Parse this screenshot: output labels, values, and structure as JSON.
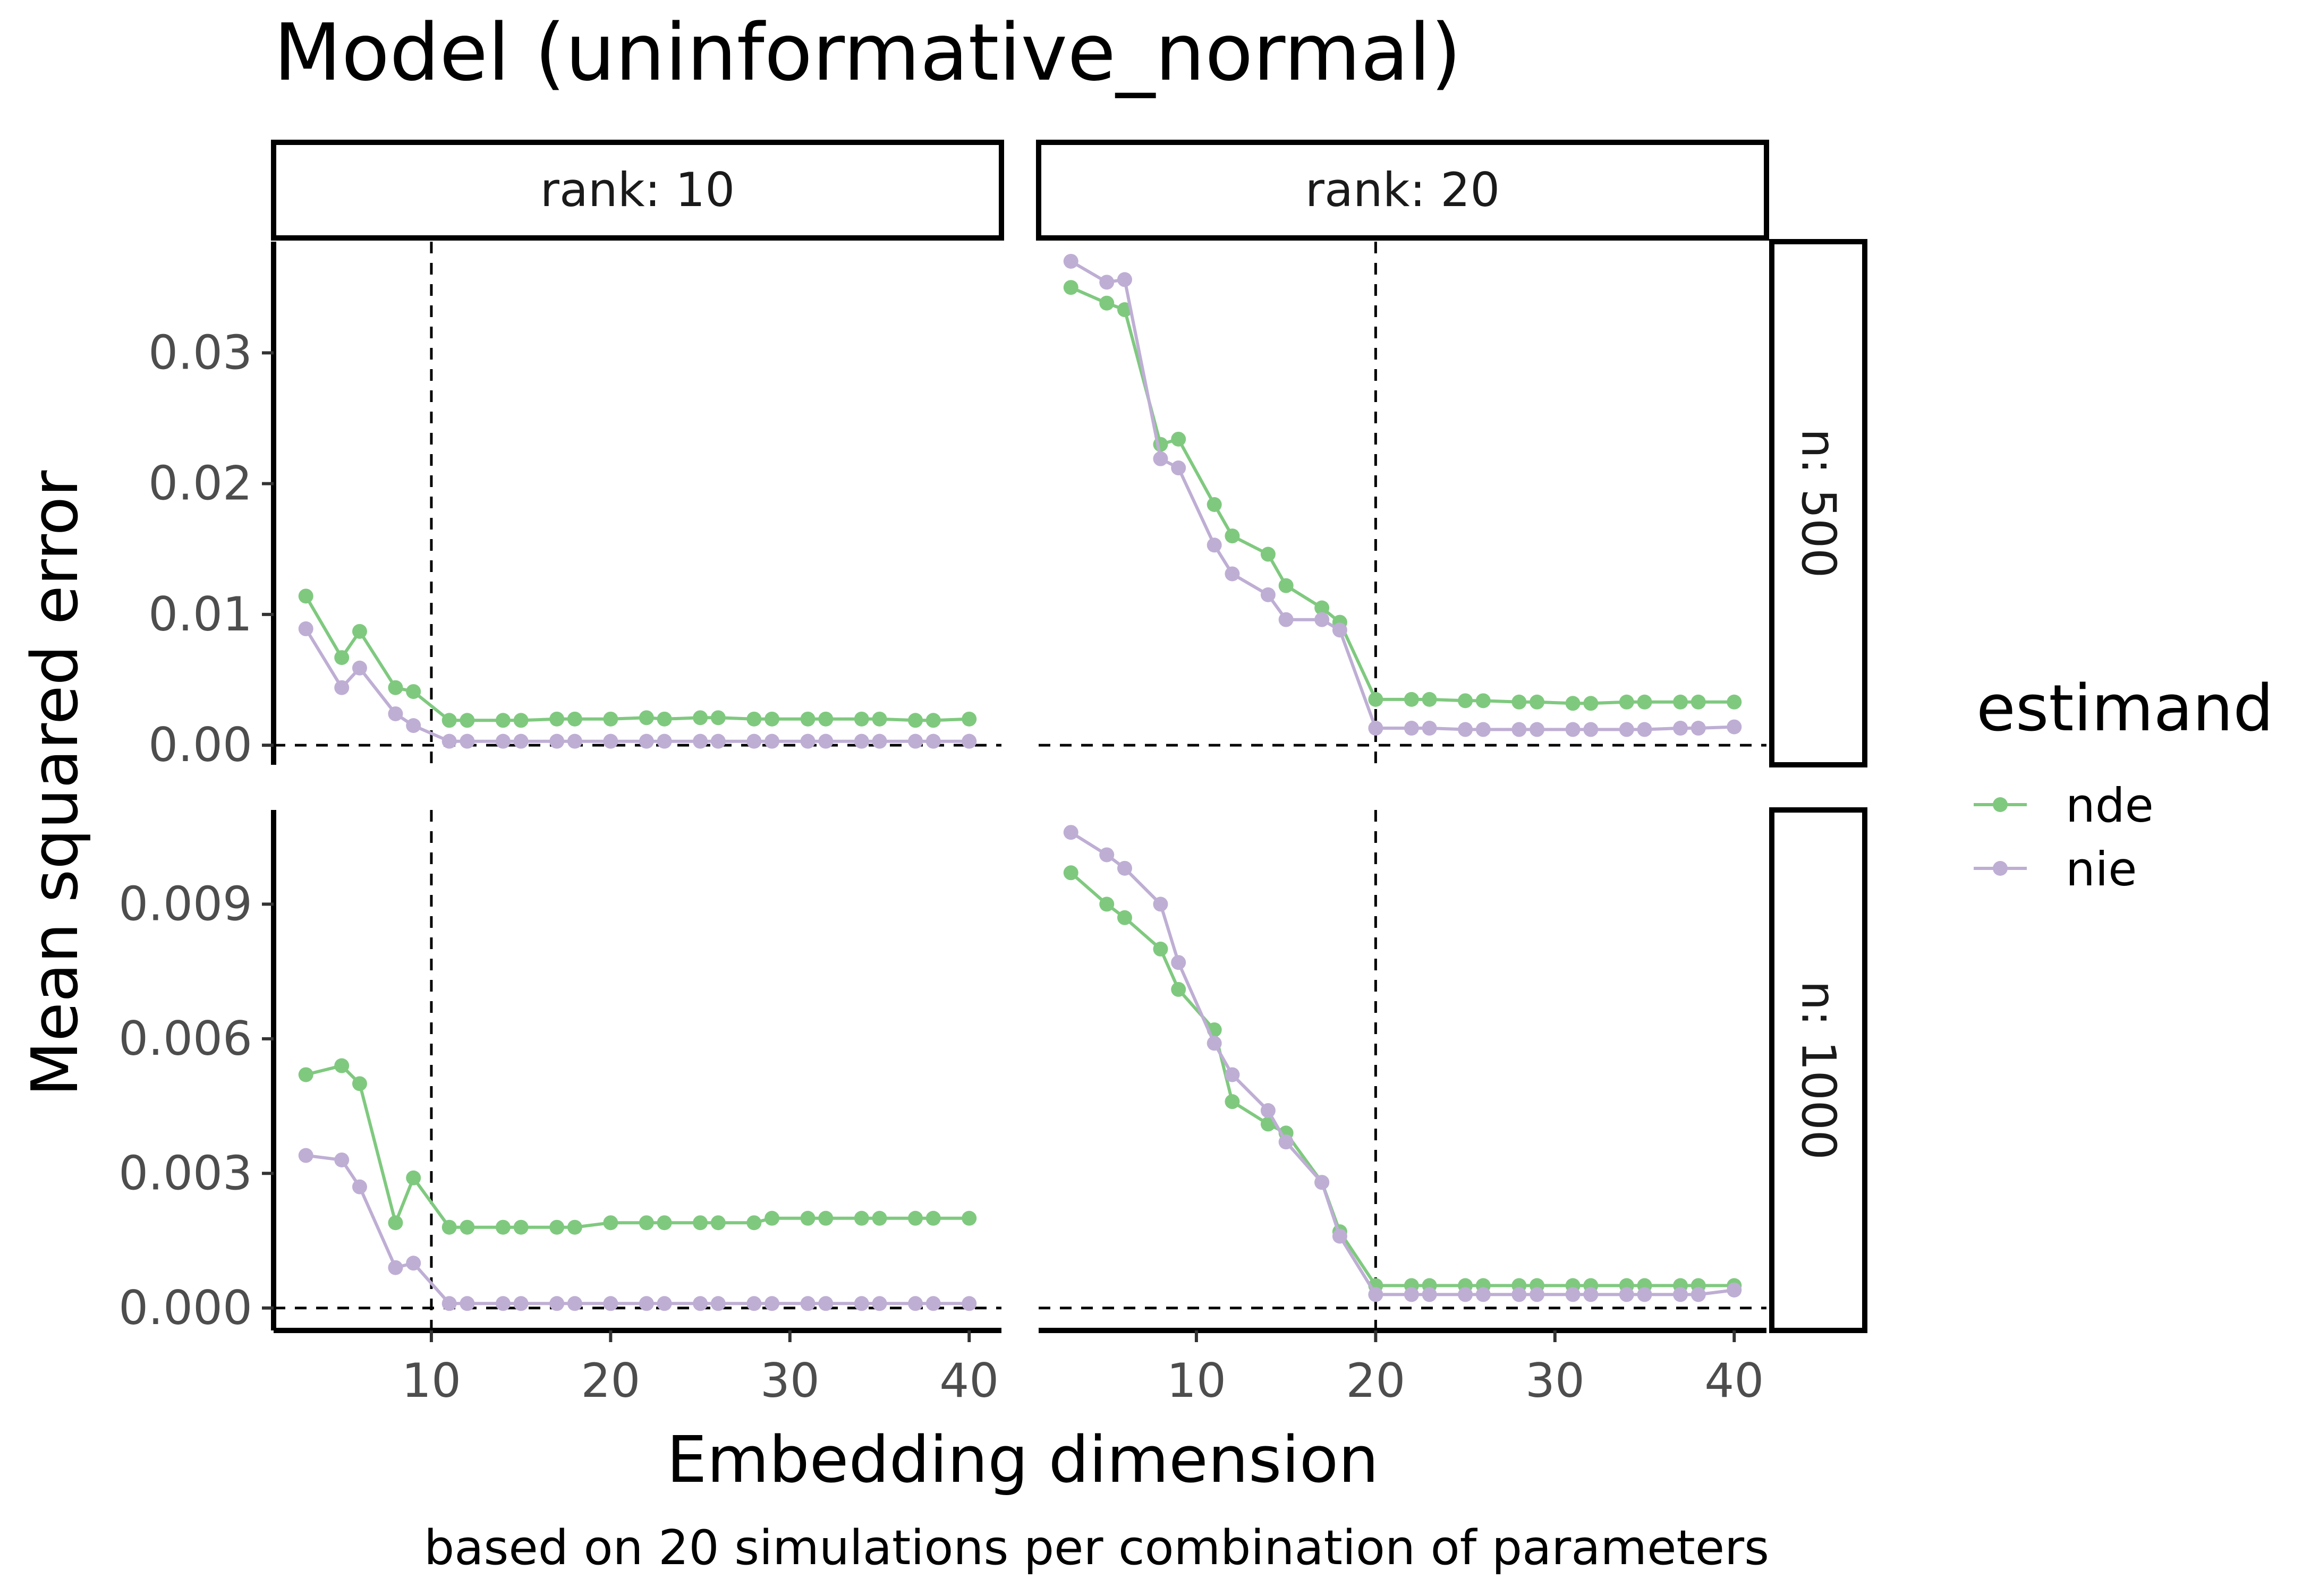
{
  "chart_data": {
    "type": "line",
    "title": "Model (uninformative_normal)",
    "xlabel": "Embedding dimension",
    "ylabel": "Mean squared error",
    "caption": "based on 20 simulations per combination of parameters",
    "legend": {
      "title": "estimand",
      "position": "right",
      "entries": [
        {
          "name": "nde",
          "color": "#7fc97f"
        },
        {
          "name": "nie",
          "color": "#beaed4"
        }
      ]
    },
    "grid": false,
    "x_dims": [
      3,
      5,
      6,
      8,
      9,
      11,
      12,
      14,
      15,
      17,
      18,
      20,
      22,
      23,
      25,
      26,
      28,
      29,
      31,
      32,
      34,
      35,
      37,
      38,
      40
    ],
    "xlim": [
      1.2,
      41.8
    ],
    "x_ticks": [
      10,
      20,
      30,
      40
    ],
    "x_tick_labels": [
      "10",
      "20",
      "30",
      "40"
    ],
    "columns": [
      {
        "label": "rank: 10",
        "rank": 10
      },
      {
        "label": "rank: 20",
        "rank": 20
      }
    ],
    "rows": [
      {
        "label": "n: 500",
        "ylim": [
          -0.0015,
          0.0385
        ],
        "y_ticks": [
          0,
          0.01,
          0.02,
          0.03
        ],
        "y_tick_labels": [
          "0.00",
          "0.01",
          "0.02",
          "0.03"
        ]
      },
      {
        "label": "n: 1000",
        "ylim": [
          -0.0005,
          0.0111
        ],
        "y_ticks": [
          0,
          0.003,
          0.006,
          0.009
        ],
        "y_tick_labels": [
          "0.000",
          "0.003",
          "0.006",
          "0.009"
        ]
      }
    ],
    "panels": [
      {
        "row": 0,
        "col": 0,
        "vline_x": 10,
        "hline_y": 0,
        "series": [
          {
            "name": "nde",
            "values": [
              0.0114,
              0.0067,
              0.0087,
              0.0044,
              0.0041,
              0.0019,
              0.0019,
              0.0019,
              0.0019,
              0.002,
              0.002,
              0.002,
              0.0021,
              0.002,
              0.0021,
              0.0021,
              0.002,
              0.002,
              0.002,
              0.002,
              0.002,
              0.002,
              0.0019,
              0.0019,
              0.002
            ]
          },
          {
            "name": "nie",
            "values": [
              0.0089,
              0.0044,
              0.0059,
              0.0024,
              0.0015,
              0.0003,
              0.0003,
              0.0003,
              0.0003,
              0.0003,
              0.0003,
              0.0003,
              0.0003,
              0.0003,
              0.0003,
              0.0003,
              0.0003,
              0.0003,
              0.0003,
              0.0003,
              0.0003,
              0.0003,
              0.0003,
              0.0003,
              0.0003
            ]
          }
        ]
      },
      {
        "row": 0,
        "col": 1,
        "vline_x": 20,
        "hline_y": 0,
        "series": [
          {
            "name": "nde",
            "values": [
              0.035,
              0.0338,
              0.0333,
              0.023,
              0.0234,
              0.0184,
              0.016,
              0.0146,
              0.0122,
              0.0105,
              0.0094,
              0.0035,
              0.0035,
              0.0035,
              0.0034,
              0.0034,
              0.0033,
              0.0033,
              0.0032,
              0.0032,
              0.0033,
              0.0033,
              0.0033,
              0.0033,
              0.0033
            ]
          },
          {
            "name": "nie",
            "values": [
              0.037,
              0.0354,
              0.0356,
              0.0219,
              0.0212,
              0.0153,
              0.0131,
              0.0115,
              0.0096,
              0.0096,
              0.0088,
              0.0013,
              0.0013,
              0.0013,
              0.0012,
              0.0012,
              0.0012,
              0.0012,
              0.0012,
              0.0012,
              0.0012,
              0.0012,
              0.0013,
              0.0013,
              0.0014
            ]
          }
        ]
      },
      {
        "row": 1,
        "col": 0,
        "vline_x": 10,
        "hline_y": 0,
        "series": [
          {
            "name": "nde",
            "values": [
              0.0052,
              0.0054,
              0.005,
              0.0019,
              0.0029,
              0.0018,
              0.0018,
              0.0018,
              0.0018,
              0.0018,
              0.0018,
              0.0019,
              0.0019,
              0.0019,
              0.0019,
              0.0019,
              0.0019,
              0.002,
              0.002,
              0.002,
              0.002,
              0.002,
              0.002,
              0.002,
              0.002
            ]
          },
          {
            "name": "nie",
            "values": [
              0.0034,
              0.0033,
              0.0027,
              0.0009,
              0.001,
              0.0001,
              0.0001,
              0.0001,
              0.0001,
              0.0001,
              0.0001,
              0.0001,
              0.0001,
              0.0001,
              0.0001,
              0.0001,
              0.0001,
              0.0001,
              0.0001,
              0.0001,
              0.0001,
              0.0001,
              0.0001,
              0.0001,
              0.0001
            ]
          }
        ]
      },
      {
        "row": 1,
        "col": 1,
        "vline_x": 20,
        "hline_y": 0,
        "series": [
          {
            "name": "nde",
            "values": [
              0.0097,
              0.009,
              0.0087,
              0.008,
              0.0071,
              0.0062,
              0.0046,
              0.0041,
              0.0039,
              0.0028,
              0.0017,
              0.0005,
              0.0005,
              0.0005,
              0.0005,
              0.0005,
              0.0005,
              0.0005,
              0.0005,
              0.0005,
              0.0005,
              0.0005,
              0.0005,
              0.0005,
              0.0005
            ]
          },
          {
            "name": "nie",
            "values": [
              0.0106,
              0.0101,
              0.0098,
              0.009,
              0.0077,
              0.0059,
              0.0052,
              0.0044,
              0.0037,
              0.0028,
              0.0016,
              0.0003,
              0.0003,
              0.0003,
              0.0003,
              0.0003,
              0.0003,
              0.0003,
              0.0003,
              0.0003,
              0.0003,
              0.0003,
              0.0003,
              0.0003,
              0.0004
            ]
          }
        ]
      }
    ]
  }
}
